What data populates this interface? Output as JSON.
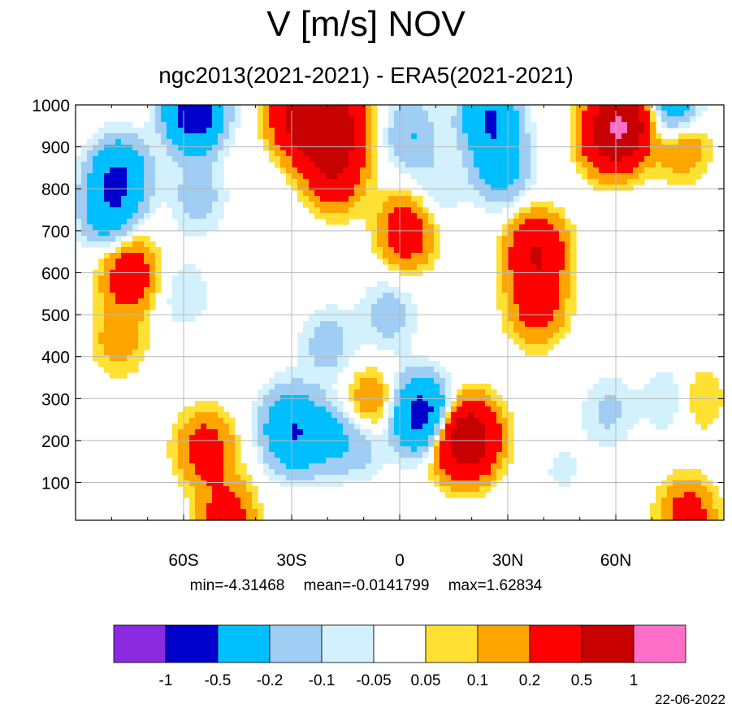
{
  "title": "V [m/s] NOV",
  "subtitle": "ngc2013(2021-2021) - ERA5(2021-2021)",
  "stats": {
    "min": "min=-4.31468",
    "mean": "mean=-0.0141799",
    "max": "max=1.62834"
  },
  "date": "22-06-2022",
  "chart_data": {
    "type": "heatmap",
    "title": "V [m/s] NOV",
    "subtitle": "ngc2013(2021-2021) - ERA5(2021-2021)",
    "x_axis": {
      "label": "",
      "range": [
        -90,
        90
      ],
      "ticks": [
        {
          "value": -60,
          "label": "60S"
        },
        {
          "value": -30,
          "label": "30S"
        },
        {
          "value": 0,
          "label": "0"
        },
        {
          "value": 30,
          "label": "30N"
        },
        {
          "value": 60,
          "label": "60N"
        }
      ]
    },
    "y_axis": {
      "label": "",
      "range": [
        1000,
        10
      ],
      "inverted": true,
      "ticks": [
        {
          "value": 100,
          "label": "100"
        },
        {
          "value": 200,
          "label": "200"
        },
        {
          "value": 300,
          "label": "300"
        },
        {
          "value": 400,
          "label": "400"
        },
        {
          "value": 500,
          "label": "500"
        },
        {
          "value": 600,
          "label": "600"
        },
        {
          "value": 700,
          "label": "700"
        },
        {
          "value": 800,
          "label": "800"
        },
        {
          "value": 900,
          "label": "900"
        },
        {
          "value": 1000,
          "label": "1000"
        }
      ]
    },
    "grid": true,
    "colorbar": {
      "colors": [
        "#8a2be2",
        "#0000cd",
        "#00bfff",
        "#a0cdf4",
        "#d2f1fd",
        "#ffffff",
        "#ffe033",
        "#ffa500",
        "#ff0000",
        "#c70000",
        "#ff6ec7"
      ],
      "labels": [
        "-1",
        "-0.5",
        "-0.2",
        "-0.1",
        "-0.05",
        "0.05",
        "0.1",
        "0.2",
        "0.5",
        "1"
      ],
      "levels": [
        -1,
        -0.5,
        -0.2,
        -0.1,
        -0.05,
        0.05,
        0.1,
        0.2,
        0.5,
        1
      ]
    },
    "missing_color": "#808080",
    "features": [
      {
        "lat": -54,
        "p": 180,
        "value": 0.3
      },
      {
        "lat": -31,
        "p": 260,
        "value": -0.15
      },
      {
        "lat": -30,
        "p": 210,
        "value": -0.35
      },
      {
        "lat": -21,
        "p": 210,
        "value": -0.2
      },
      {
        "lat": -11,
        "p": 205,
        "value": -0.2
      },
      {
        "lat": -8,
        "p": 280,
        "value": 0.25
      },
      {
        "lat": 5,
        "p": 265,
        "value": -0.45
      },
      {
        "lat": 9,
        "p": 250,
        "value": -0.3
      },
      {
        "lat": 15,
        "p": 200,
        "value": 0.4
      },
      {
        "lat": 20,
        "p": 205,
        "value": 0.6
      },
      {
        "lat": -20,
        "p": 430,
        "value": -0.15
      },
      {
        "lat": -3,
        "p": 500,
        "value": -0.15
      },
      {
        "lat": -60,
        "p": 550,
        "value": -0.1
      },
      {
        "lat": -56,
        "p": 780,
        "value": -0.15
      },
      {
        "lat": -78,
        "p": 440,
        "value": 0.15
      },
      {
        "lat": -75,
        "p": 600,
        "value": 0.35
      },
      {
        "lat": 38,
        "p": 520,
        "value": 0.3
      },
      {
        "lat": 38,
        "p": 650,
        "value": 0.5
      },
      {
        "lat": 2,
        "p": 700,
        "value": 0.35
      },
      {
        "lat": -18,
        "p": 840,
        "value": 0.4
      },
      {
        "lat": -22,
        "p": 920,
        "value": 0.3
      },
      {
        "lat": -28,
        "p": 975,
        "value": 0.6
      },
      {
        "lat": -17,
        "p": 960,
        "value": 0.55
      },
      {
        "lat": 28,
        "p": 850,
        "value": -0.3
      },
      {
        "lat": 25,
        "p": 970,
        "value": -0.5
      },
      {
        "lat": 3,
        "p": 930,
        "value": -0.2
      },
      {
        "lat": 10,
        "p": 790,
        "value": -0.1
      },
      {
        "lat": 58,
        "p": 920,
        "value": 0.4
      },
      {
        "lat": 62,
        "p": 960,
        "value": 0.8
      },
      {
        "lat": 76,
        "p": 985,
        "value": -0.45
      },
      {
        "lat": 78,
        "p": 920,
        "value": 0.3
      },
      {
        "lat": 82,
        "p": 300,
        "value": 0.15
      },
      {
        "lat": 76,
        "p": 300,
        "value": -0.15
      },
      {
        "lat": 58,
        "p": 270,
        "value": -0.12
      },
      {
        "lat": -81,
        "p": 740,
        "value": -0.3
      },
      {
        "lat": -78,
        "p": 830,
        "value": -0.5
      },
      {
        "lat": -57,
        "p": 985,
        "value": -0.8
      },
      {
        "lat": 80,
        "p": 20,
        "value": 0.3
      },
      {
        "lat": -48,
        "p": 20,
        "value": 0.3
      },
      {
        "lat": 45,
        "p": 130,
        "value": -0.06
      }
    ]
  }
}
